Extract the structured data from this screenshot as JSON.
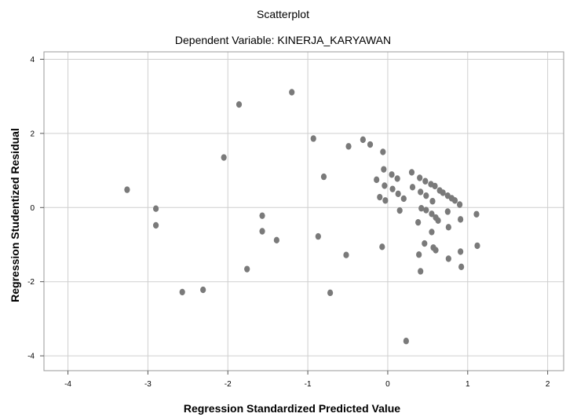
{
  "chart_data": {
    "type": "scatter",
    "title": "Scatterplot",
    "subtitle": "Dependent Variable: KINERJA_KARYAWAN",
    "xlabel": "Regression Standardized Predicted Value",
    "ylabel": "Regression Studentized Residual",
    "xlim": [
      -4.3,
      2.2
    ],
    "ylim": [
      -4.4,
      4.2
    ],
    "xticks": [
      -4,
      -3,
      -2,
      -1,
      0,
      1,
      2
    ],
    "yticks": [
      -4,
      -2,
      0,
      2,
      4
    ],
    "grid": true,
    "point_color": "#7a7a7a",
    "points": [
      {
        "x": -3.26,
        "y": 0.48
      },
      {
        "x": -2.9,
        "y": -0.03
      },
      {
        "x": -2.9,
        "y": -0.48
      },
      {
        "x": -2.57,
        "y": -2.28
      },
      {
        "x": -2.31,
        "y": -2.22
      },
      {
        "x": -2.05,
        "y": 1.35
      },
      {
        "x": -1.86,
        "y": 2.78
      },
      {
        "x": -1.76,
        "y": -1.66
      },
      {
        "x": -1.57,
        "y": -0.22
      },
      {
        "x": -1.57,
        "y": -0.64
      },
      {
        "x": -1.39,
        "y": -0.88
      },
      {
        "x": -1.2,
        "y": 3.11
      },
      {
        "x": -0.93,
        "y": 1.86
      },
      {
        "x": -0.87,
        "y": -0.78
      },
      {
        "x": -0.8,
        "y": 0.83
      },
      {
        "x": -0.72,
        "y": -2.3
      },
      {
        "x": -0.52,
        "y": -1.28
      },
      {
        "x": -0.49,
        "y": 1.65
      },
      {
        "x": -0.31,
        "y": 1.83
      },
      {
        "x": -0.22,
        "y": 1.7
      },
      {
        "x": -0.14,
        "y": 0.75
      },
      {
        "x": -0.1,
        "y": 0.28
      },
      {
        "x": -0.07,
        "y": -1.06
      },
      {
        "x": -0.06,
        "y": 1.5
      },
      {
        "x": -0.05,
        "y": 1.03
      },
      {
        "x": -0.04,
        "y": 0.59
      },
      {
        "x": -0.03,
        "y": 0.19
      },
      {
        "x": 0.05,
        "y": 0.89
      },
      {
        "x": 0.06,
        "y": 0.5
      },
      {
        "x": 0.12,
        "y": 0.78
      },
      {
        "x": 0.13,
        "y": 0.37
      },
      {
        "x": 0.15,
        "y": -0.08
      },
      {
        "x": 0.2,
        "y": 0.24
      },
      {
        "x": 0.23,
        "y": -3.6
      },
      {
        "x": 0.3,
        "y": 0.95
      },
      {
        "x": 0.31,
        "y": 0.55
      },
      {
        "x": 0.38,
        "y": -0.4
      },
      {
        "x": 0.39,
        "y": -1.27
      },
      {
        "x": 0.4,
        "y": 0.8
      },
      {
        "x": 0.41,
        "y": 0.42
      },
      {
        "x": 0.41,
        "y": -1.72
      },
      {
        "x": 0.42,
        "y": -0.02
      },
      {
        "x": 0.46,
        "y": -0.97
      },
      {
        "x": 0.47,
        "y": 0.71
      },
      {
        "x": 0.48,
        "y": 0.32
      },
      {
        "x": 0.48,
        "y": -0.07
      },
      {
        "x": 0.54,
        "y": 0.63
      },
      {
        "x": 0.55,
        "y": -0.17
      },
      {
        "x": 0.55,
        "y": -0.66
      },
      {
        "x": 0.56,
        "y": 0.17
      },
      {
        "x": 0.57,
        "y": -1.08
      },
      {
        "x": 0.59,
        "y": 0.58
      },
      {
        "x": 0.6,
        "y": -0.27
      },
      {
        "x": 0.6,
        "y": -1.15
      },
      {
        "x": 0.63,
        "y": -0.35
      },
      {
        "x": 0.65,
        "y": 0.46
      },
      {
        "x": 0.69,
        "y": 0.4
      },
      {
        "x": 0.75,
        "y": 0.32
      },
      {
        "x": 0.75,
        "y": -0.11
      },
      {
        "x": 0.76,
        "y": -1.38
      },
      {
        "x": 0.76,
        "y": -0.53
      },
      {
        "x": 0.8,
        "y": 0.25
      },
      {
        "x": 0.84,
        "y": 0.19
      },
      {
        "x": 0.9,
        "y": 0.08
      },
      {
        "x": 0.91,
        "y": -0.32
      },
      {
        "x": 0.91,
        "y": -1.19
      },
      {
        "x": 0.92,
        "y": -1.6
      },
      {
        "x": 1.11,
        "y": -0.18
      },
      {
        "x": 1.12,
        "y": -1.03
      }
    ]
  }
}
